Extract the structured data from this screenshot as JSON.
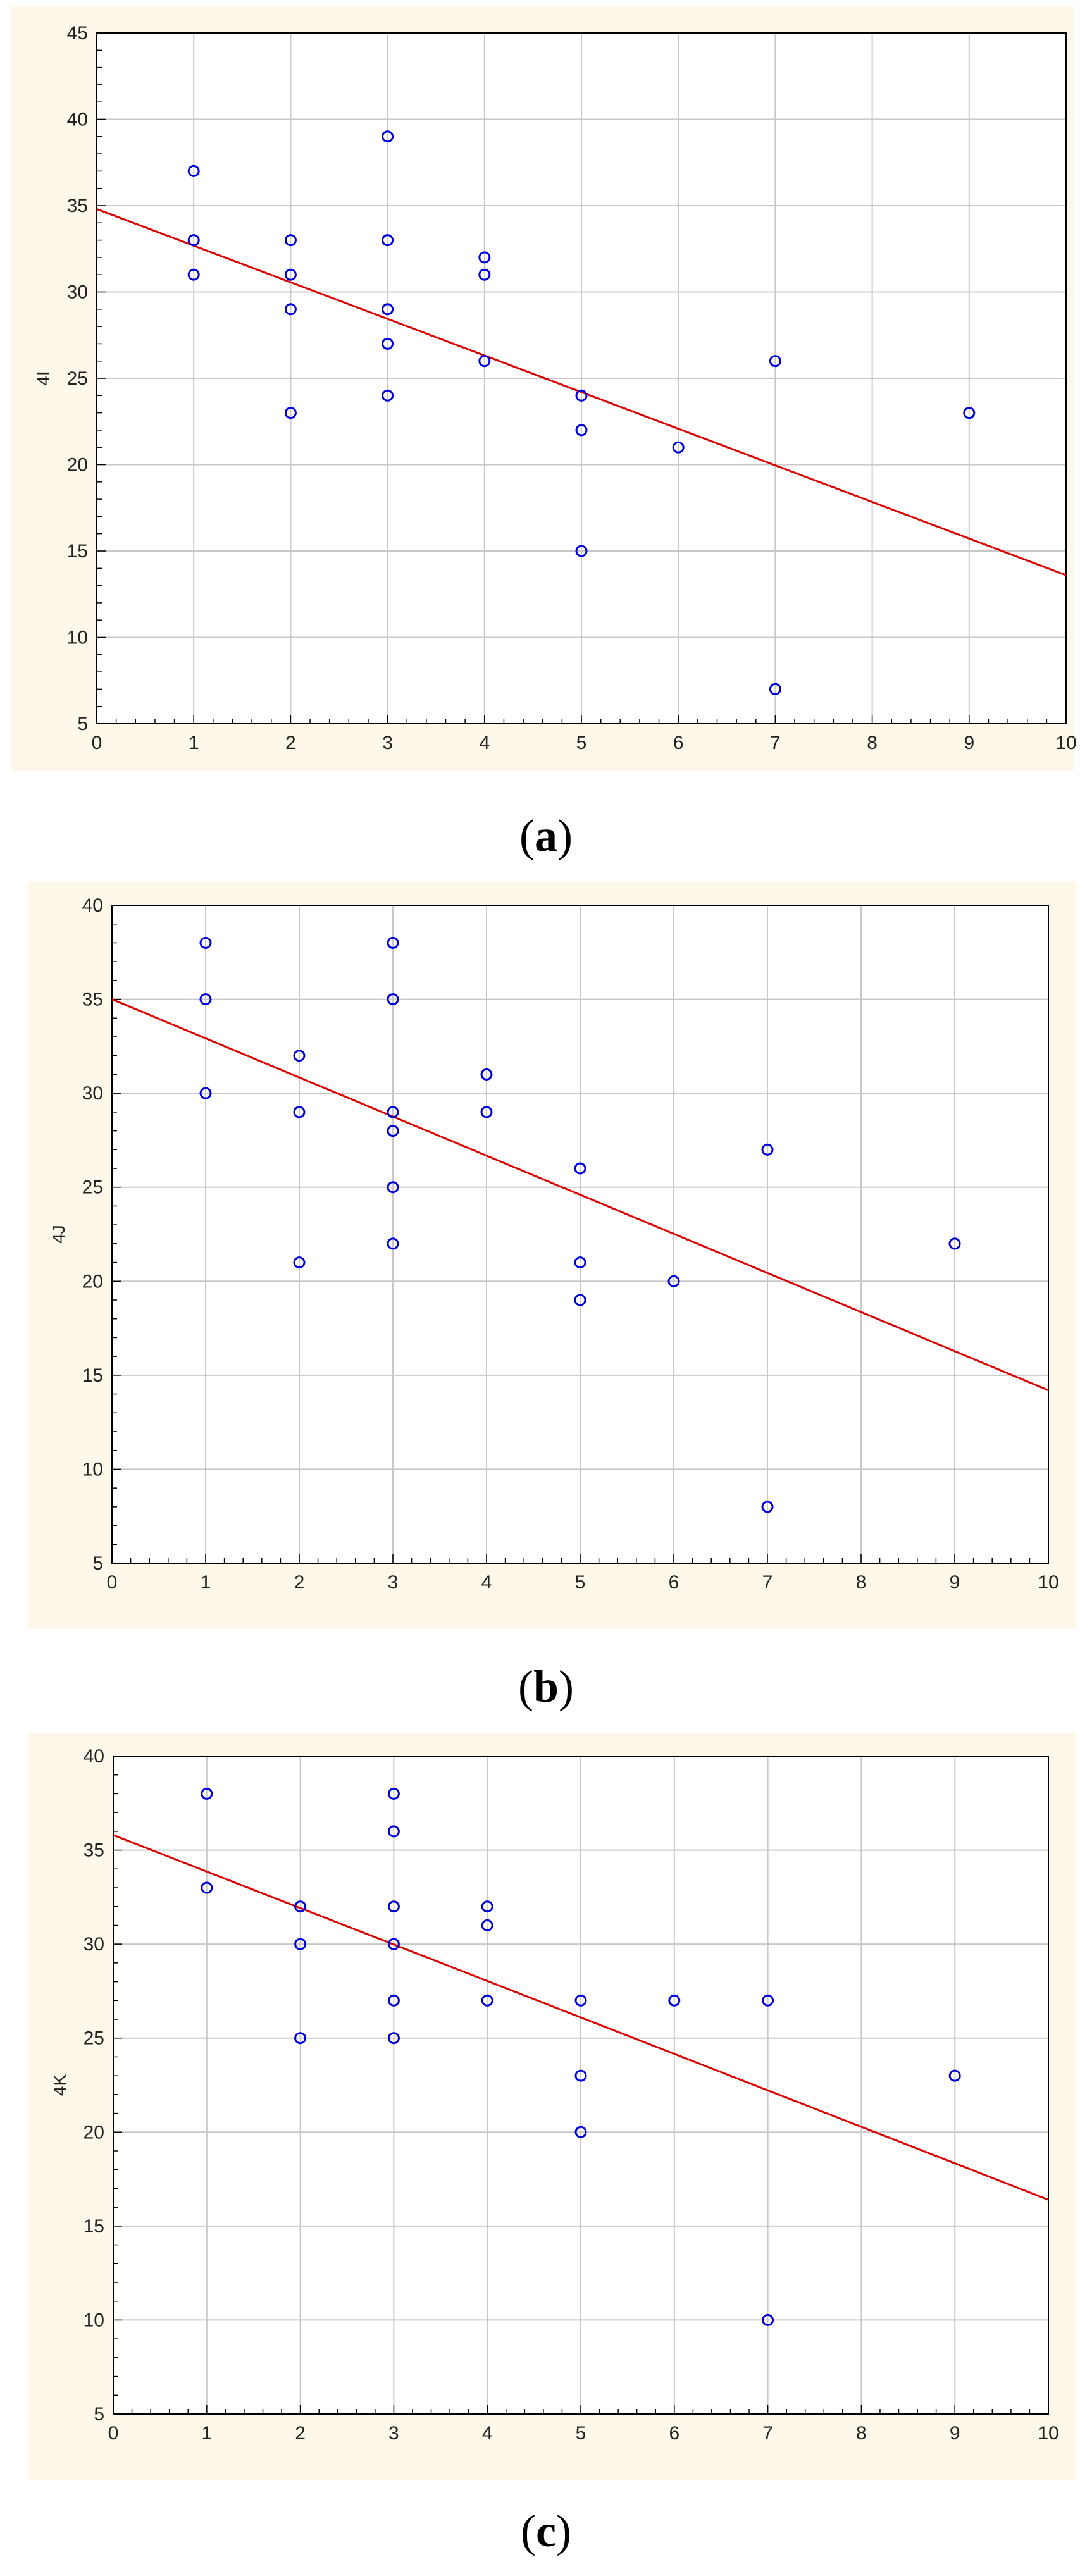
{
  "figure": {
    "captions": [
      {
        "open": "(",
        "letter": "a",
        "close": ")"
      },
      {
        "open": "(",
        "letter": "b",
        "close": ")"
      },
      {
        "open": "(",
        "letter": "c",
        "close": ")"
      }
    ]
  },
  "colors": {
    "panel_bg": "#fdf8ea",
    "plot_bg": "#ffffff",
    "grid": "#c8c8c8",
    "points": "#0000dd",
    "fit_line": "#dd0000"
  },
  "chart_data": [
    {
      "type": "scatter",
      "title": "",
      "xlabel": "",
      "ylabel": "4I",
      "xlim": [
        0,
        10
      ],
      "ylim": [
        5,
        45
      ],
      "xticks": [
        0,
        1,
        2,
        3,
        4,
        5,
        6,
        7,
        8,
        9,
        10
      ],
      "yticks": [
        5,
        10,
        15,
        20,
        25,
        30,
        35,
        40,
        45
      ],
      "grid": true,
      "x": [
        1,
        1,
        1,
        2,
        2,
        2,
        2,
        3,
        3,
        3,
        3,
        3,
        4,
        4,
        4,
        5,
        5,
        5,
        6,
        7,
        7,
        9
      ],
      "y": [
        37,
        33,
        31,
        33,
        31,
        29,
        23,
        39,
        33,
        29,
        27,
        24,
        32,
        31,
        26,
        24,
        22,
        15,
        21,
        26,
        7,
        23
      ],
      "fit_line": {
        "x": [
          0,
          10
        ],
        "y": [
          34.8,
          13.6
        ]
      }
    },
    {
      "type": "scatter",
      "title": "",
      "xlabel": "",
      "ylabel": "4J",
      "xlim": [
        0,
        10
      ],
      "ylim": [
        5,
        40
      ],
      "xticks": [
        0,
        1,
        2,
        3,
        4,
        5,
        6,
        7,
        8,
        9,
        10
      ],
      "yticks": [
        5,
        10,
        15,
        20,
        25,
        30,
        35,
        40
      ],
      "grid": true,
      "x": [
        1,
        1,
        1,
        2,
        2,
        2,
        3,
        3,
        3,
        3,
        3,
        3,
        4,
        4,
        5,
        5,
        5,
        6,
        7,
        7,
        9
      ],
      "y": [
        38,
        35,
        30,
        32,
        29,
        21,
        38,
        35,
        29,
        28,
        25,
        22,
        31,
        29,
        26,
        21,
        19,
        20,
        27,
        8,
        22
      ],
      "fit_line": {
        "x": [
          0,
          10
        ],
        "y": [
          35,
          14.2
        ]
      }
    },
    {
      "type": "scatter",
      "title": "",
      "xlabel": "",
      "ylabel": "4K",
      "xlim": [
        0,
        10
      ],
      "ylim": [
        5,
        40
      ],
      "xticks": [
        0,
        1,
        2,
        3,
        4,
        5,
        6,
        7,
        8,
        9,
        10
      ],
      "yticks": [
        5,
        10,
        15,
        20,
        25,
        30,
        35,
        40
      ],
      "grid": true,
      "x": [
        1,
        1,
        2,
        2,
        2,
        3,
        3,
        3,
        3,
        3,
        3,
        4,
        4,
        4,
        5,
        5,
        5,
        6,
        7,
        7,
        9
      ],
      "y": [
        38,
        33,
        32,
        30,
        25,
        38,
        36,
        32,
        30,
        27,
        25,
        32,
        31,
        27,
        27,
        23,
        20,
        27,
        27,
        10,
        23
      ],
      "fit_line": {
        "x": [
          0,
          10
        ],
        "y": [
          35.8,
          16.4
        ]
      }
    }
  ]
}
